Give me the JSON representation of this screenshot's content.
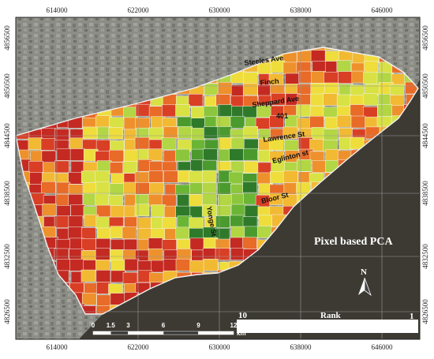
{
  "map": {
    "title": "Pixel based PCA",
    "x_ticks": [
      "614000",
      "622000",
      "630000",
      "638000",
      "646000"
    ],
    "y_ticks": [
      "4856500",
      "4850500",
      "4844500",
      "4838500",
      "4832500",
      "4826500"
    ],
    "streets": [
      "Steeles Ave",
      "Finch",
      "Sheppard Ave",
      "401",
      "Lawrence St",
      "Eglinton st",
      "Bloor St",
      "Yonge St"
    ],
    "north_label": "N",
    "legend": {
      "title": "Rank",
      "min_label": "10",
      "max_label": "1",
      "colors": [
        "#2f7a2a",
        "#4b9a2e",
        "#6bb535",
        "#8cc63c",
        "#b2d644",
        "#d8e244",
        "#efdd3c",
        "#f2b933",
        "#ee912c",
        "#e86b28",
        "#d93f25",
        "#c42a22"
      ]
    },
    "scale": {
      "labels": [
        "0",
        "1.5",
        "3",
        "6",
        "9",
        "12"
      ],
      "unit": "km"
    },
    "colors": {
      "water": "#3d3a34",
      "water_dark": "#2b2926",
      "urban": "#8c8d86",
      "urban_dark": "#6f706b",
      "boundary": "#f2f2f2"
    }
  }
}
